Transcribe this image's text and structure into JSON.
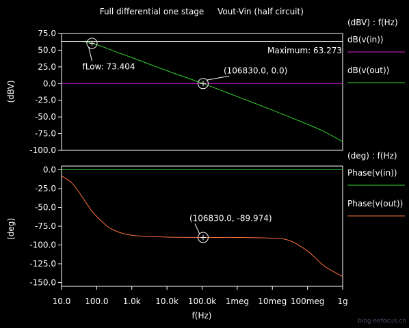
{
  "title_left": "Full differential one stage",
  "title_right": "Vout-Vin (half circuit)",
  "watermark": "blog.eefocus.cn",
  "colors": {
    "background": "#000000",
    "axis": "#ffffff",
    "magenta": "#e020e0",
    "green": "#30d030",
    "orange": "#ff7040"
  },
  "chart_data": [
    {
      "type": "line",
      "ylabel": "(dBV)",
      "unit_label": "(dBV) : f(Hz)",
      "x_scale": "log",
      "xlim": [
        10,
        1000000000
      ],
      "ylim": [
        -100,
        75
      ],
      "yticks": [
        75,
        50,
        25,
        0,
        -25,
        -50,
        -75,
        -100
      ],
      "ytick_labels": [
        "75.0",
        "50.0",
        "25.0",
        "0.0",
        "-25.0",
        "-50.0",
        "-75.0",
        "-100.0"
      ],
      "series": [
        {
          "name": "dB(v(in))",
          "color": "#e020e0",
          "x": [
            10,
            1000000000
          ],
          "y": [
            0,
            0
          ]
        },
        {
          "name": "dB(v(out))",
          "color": "#30d030",
          "x": [
            10,
            20,
            40,
            73.404,
            150,
            400,
            1000,
            10000,
            106830,
            1000000,
            10000000,
            100000000,
            300000000,
            1000000000
          ],
          "y": [
            63.27,
            63.25,
            63,
            60.3,
            55,
            46.5,
            38.9,
            19.2,
            0,
            -19.5,
            -39.8,
            -61,
            -72,
            -87
          ]
        }
      ],
      "annotations": [
        {
          "text": "fLow: 73.404",
          "x": 73.404,
          "y": 60.3
        },
        {
          "text": "(106830.0, 0.0)",
          "x": 106830,
          "y": 0
        }
      ],
      "maximum_label": "Maximum: 63.273",
      "max_value": 63.273
    },
    {
      "type": "line",
      "ylabel": "(deg)",
      "unit_label": "(deg) : f(Hz)",
      "xlabel": "f(Hz)",
      "x_scale": "log",
      "xlim": [
        10,
        1000000000
      ],
      "ylim": [
        -155,
        5
      ],
      "yticks": [
        0,
        -25,
        -50,
        -75,
        -100,
        -125,
        -150
      ],
      "ytick_labels": [
        "0.0",
        "-25.0",
        "-50.0",
        "-75.0",
        "-100.0",
        "-125.0",
        "-150.0"
      ],
      "xticks": [
        10,
        100,
        1000,
        10000,
        100000,
        1000000,
        10000000,
        100000000,
        1000000000
      ],
      "xtick_labels": [
        "10.0",
        "100.0",
        "1.0k",
        "10.0k",
        "100.0k",
        "1meg",
        "10meg",
        "100meg",
        "1g"
      ],
      "series": [
        {
          "name": "Phase(v(in))",
          "color": "#30d030",
          "x": [
            10,
            1000000000
          ],
          "y": [
            0,
            0
          ]
        },
        {
          "name": "Phase(v(out))",
          "color": "#ff7040",
          "x": [
            10,
            20,
            40,
            73.4,
            150,
            300,
            1000,
            10000,
            106830,
            1000000,
            10000000,
            30000000,
            100000000,
            300000000,
            1000000000
          ],
          "y": [
            -8,
            -18,
            -37,
            -55,
            -70,
            -80,
            -87,
            -89.5,
            -89.974,
            -90,
            -91,
            -94,
            -108,
            -128,
            -142
          ]
        }
      ],
      "annotations": [
        {
          "text": "(106830.0, -89.974)",
          "x": 106830,
          "y": -89.974
        }
      ]
    }
  ]
}
